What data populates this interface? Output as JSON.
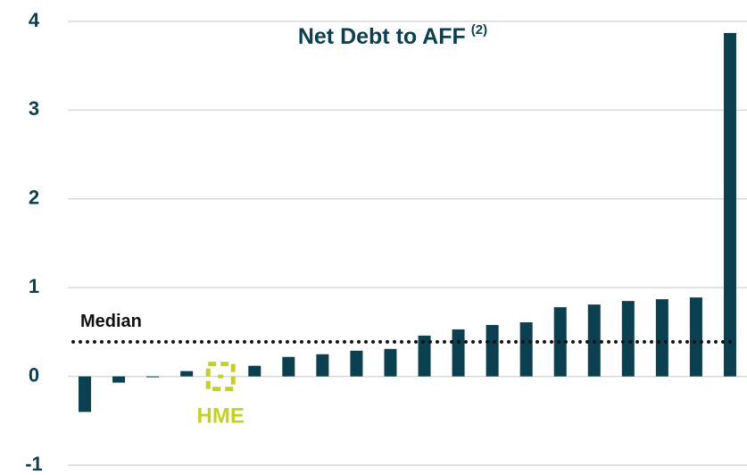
{
  "chart_data": {
    "type": "bar",
    "title": "Net Debt to AFF",
    "title_note": "(2)",
    "categories": [
      null,
      null,
      null,
      null,
      "HME",
      null,
      null,
      null,
      null,
      null,
      null,
      null,
      null,
      null,
      null,
      null,
      null,
      null,
      null,
      null
    ],
    "values": [
      -0.4,
      -0.07,
      -0.01,
      0.06,
      0.0,
      0.12,
      0.22,
      0.25,
      0.29,
      0.31,
      0.46,
      0.53,
      0.58,
      0.61,
      0.78,
      0.81,
      0.85,
      0.87,
      0.89,
      3.87
    ],
    "color": "#0b4050",
    "highlight_index": 4,
    "highlight_color": "#c4d21c",
    "median": 0.39,
    "median_label": "Median",
    "ylim": [
      -1,
      4
    ],
    "yticks": [
      -1,
      0,
      1,
      2,
      3,
      4
    ],
    "grid": true
  }
}
